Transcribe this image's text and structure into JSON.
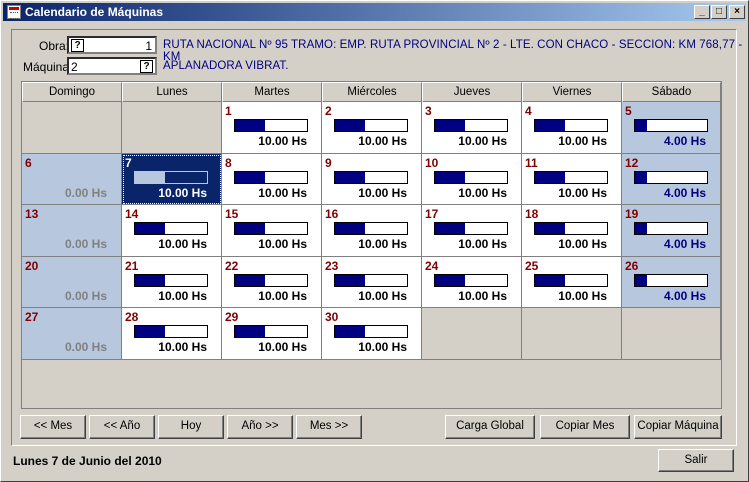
{
  "window": {
    "title": "Calendario de Máquinas"
  },
  "form": {
    "obra_label": "Obra:",
    "obra_value": "1",
    "maquina_label": "Máquina:",
    "maquina_value": "2",
    "help_icon": "?",
    "obra_desc": "RUTA NACIONAL Nº 95  TRAMO: EMP. RUTA PROVINCIAL Nº 2 - LTE. CON CHACO - SECCION: KM 768,77 - KM",
    "maquina_desc": "APLANADORA VIBRAT."
  },
  "weekdays": [
    "Domingo",
    "Lunes",
    "Martes",
    "Miércoles",
    "Jueves",
    "Viernes",
    "Sábado"
  ],
  "days": [
    {
      "d": "1",
      "h": "10.00 Hs",
      "fill": 0.42
    },
    {
      "d": "2",
      "h": "10.00 Hs",
      "fill": 0.42
    },
    {
      "d": "3",
      "h": "10.00 Hs",
      "fill": 0.42
    },
    {
      "d": "4",
      "h": "10.00 Hs",
      "fill": 0.42
    },
    {
      "d": "5",
      "h": "4.00 Hs",
      "fill": 0.17
    },
    {
      "d": "6",
      "h": "0.00 Hs",
      "fill": 0
    },
    {
      "d": "7",
      "h": "10.00 Hs",
      "fill": 0.42
    },
    {
      "d": "8",
      "h": "10.00 Hs",
      "fill": 0.42
    },
    {
      "d": "9",
      "h": "10.00 Hs",
      "fill": 0.42
    },
    {
      "d": "10",
      "h": "10.00 Hs",
      "fill": 0.42
    },
    {
      "d": "11",
      "h": "10.00 Hs",
      "fill": 0.42
    },
    {
      "d": "12",
      "h": "4.00 Hs",
      "fill": 0.17
    },
    {
      "d": "13",
      "h": "0.00 Hs",
      "fill": 0
    },
    {
      "d": "14",
      "h": "10.00 Hs",
      "fill": 0.42
    },
    {
      "d": "15",
      "h": "10.00 Hs",
      "fill": 0.42
    },
    {
      "d": "16",
      "h": "10.00 Hs",
      "fill": 0.42
    },
    {
      "d": "17",
      "h": "10.00 Hs",
      "fill": 0.42
    },
    {
      "d": "18",
      "h": "10.00 Hs",
      "fill": 0.42
    },
    {
      "d": "19",
      "h": "4.00 Hs",
      "fill": 0.17
    },
    {
      "d": "20",
      "h": "0.00 Hs",
      "fill": 0
    },
    {
      "d": "21",
      "h": "10.00 Hs",
      "fill": 0.42
    },
    {
      "d": "22",
      "h": "10.00 Hs",
      "fill": 0.42
    },
    {
      "d": "23",
      "h": "10.00 Hs",
      "fill": 0.42
    },
    {
      "d": "24",
      "h": "10.00 Hs",
      "fill": 0.42
    },
    {
      "d": "25",
      "h": "10.00 Hs",
      "fill": 0.42
    },
    {
      "d": "26",
      "h": "4.00 Hs",
      "fill": 0.17
    },
    {
      "d": "27",
      "h": "0.00 Hs",
      "fill": 0
    },
    {
      "d": "28",
      "h": "10.00 Hs",
      "fill": 0.42
    },
    {
      "d": "29",
      "h": "10.00 Hs",
      "fill": 0.42
    },
    {
      "d": "30",
      "h": "10.00 Hs",
      "fill": 0.42
    }
  ],
  "selected_day": "7",
  "buttons": {
    "prev_month": "<< Mes",
    "prev_year": "<< Año",
    "today": "Hoy",
    "next_year": "Año >>",
    "next_month": "Mes >>",
    "global_load": "Carga Global",
    "copy_month": "Copiar Mes",
    "copy_machine": "Copiar Máquina",
    "exit": "Salir"
  },
  "status": "Lunes 7 de Junio del 2010",
  "colors": {
    "bar": "#000080",
    "weekend": "#b7c7dd",
    "selected": "#0a246a",
    "daynum": "#800000"
  }
}
